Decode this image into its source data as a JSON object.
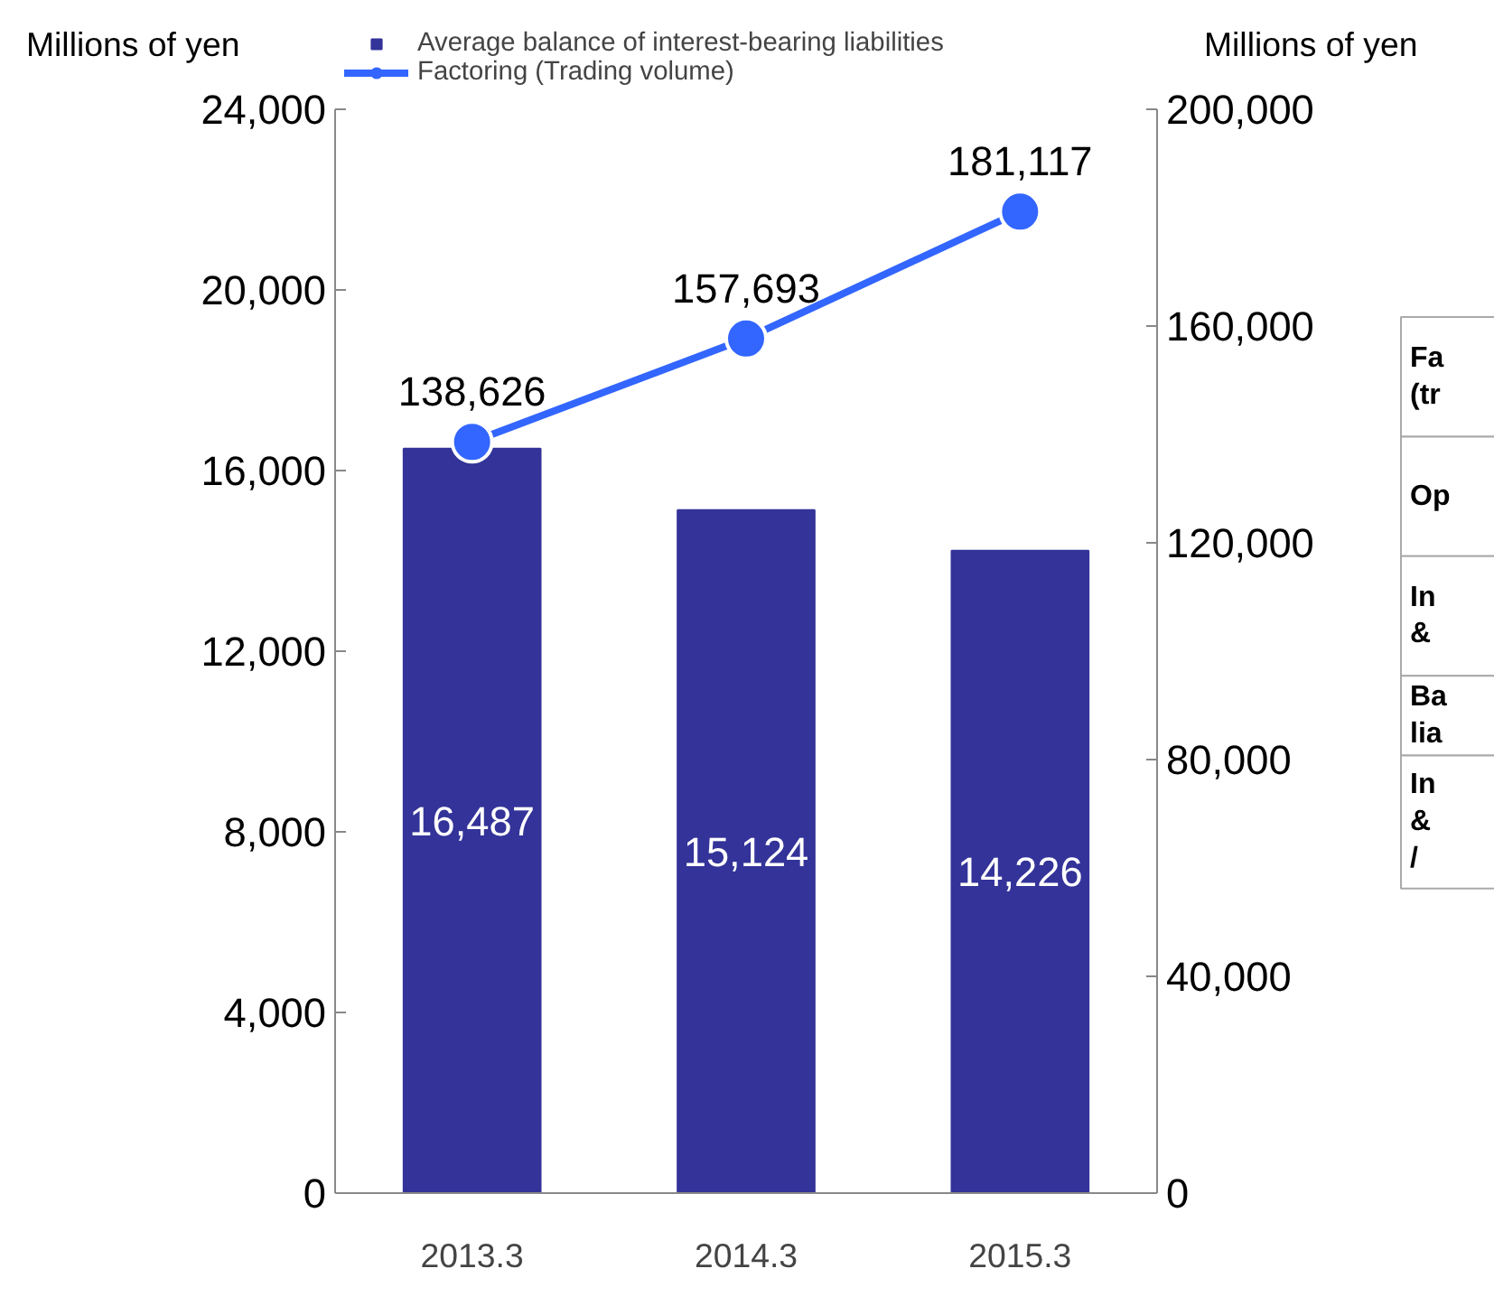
{
  "chart_data": {
    "type": "bar",
    "categories": [
      "2013.3",
      "2014.3",
      "2015.3"
    ],
    "ylabel": "Millions of yen",
    "y2label": "Millions of yen",
    "ylim": [
      0,
      24000
    ],
    "yticks": [
      {
        "value": 0,
        "label": "0"
      },
      {
        "value": 4000,
        "label": "4,000"
      },
      {
        "value": 8000,
        "label": "8,000"
      },
      {
        "value": 12000,
        "label": "12,000"
      },
      {
        "value": 16000,
        "label": "16,000"
      },
      {
        "value": 20000,
        "label": "20,000"
      },
      {
        "value": 24000,
        "label": "24,000"
      }
    ],
    "y2lim": [
      0,
      200000
    ],
    "y2ticks": [
      {
        "value": 0,
        "label": "0"
      },
      {
        "value": 40000,
        "label": "40,000"
      },
      {
        "value": 80000,
        "label": "80,000"
      },
      {
        "value": 120000,
        "label": "120,000"
      },
      {
        "value": 160000,
        "label": "160,000"
      },
      {
        "value": 200000,
        "label": "200,000"
      }
    ],
    "series": [
      {
        "name": "Average balance of interest-bearing liabilities",
        "color": "#333399",
        "values": [
          16487,
          15124,
          14226
        ],
        "value_labels": [
          "16,487",
          "15,124",
          "14,226"
        ]
      },
      {
        "name": "Factoring (Trading volume)",
        "type": "line",
        "axis": "y2",
        "color": "#3366ff",
        "marker": "circle",
        "values": [
          138626,
          157693,
          181117
        ],
        "value_labels": [
          "138,626",
          "157,693",
          "181,117"
        ]
      }
    ],
    "legend": "top",
    "grid": false,
    "annotations": [
      "Fa\n(tr",
      "Op",
      "In\n&",
      "Ba\nlia",
      "In\n&\n/"
    ]
  }
}
